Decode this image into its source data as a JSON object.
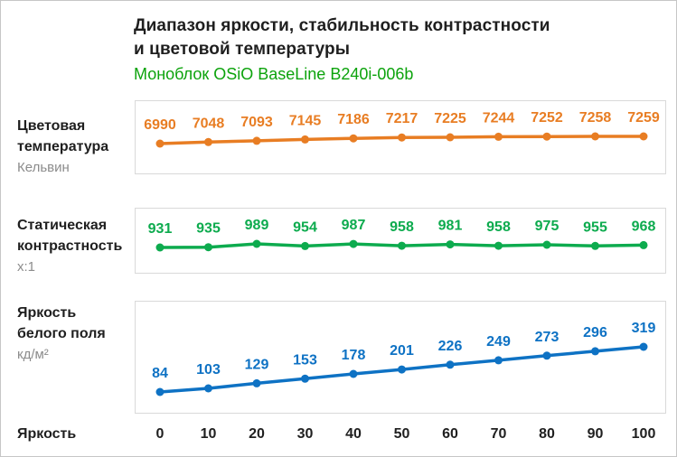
{
  "header": {
    "title_line1": "Диапазон яркости, стабильность контрастности",
    "title_line2": "и цветовой температуры",
    "subtitle": "Моноблок OSiO BaseLine B240i-006b"
  },
  "colors": {
    "subtitle_green": "#0ca30c",
    "orange": "#e87d23",
    "green": "#0dab4e",
    "blue": "#0e72c4",
    "unit_gray": "#8c8c8c",
    "plot_border": "#d9d9d9"
  },
  "x_axis": {
    "label": "Яркость",
    "ticks": [
      "0",
      "10",
      "20",
      "30",
      "40",
      "50",
      "60",
      "70",
      "80",
      "90",
      "100"
    ]
  },
  "chart_data": [
    {
      "type": "line",
      "name": "Цветовая температура",
      "label_lines": [
        "Цветовая",
        "температура"
      ],
      "unit": "Кельвин",
      "color_key": "orange",
      "x": [
        0,
        10,
        20,
        30,
        40,
        50,
        60,
        70,
        80,
        90,
        100
      ],
      "values": [
        6990,
        7048,
        7093,
        7145,
        7186,
        7217,
        7225,
        7244,
        7252,
        7258,
        7259
      ],
      "data_labels": true,
      "grid": false,
      "legend": "none"
    },
    {
      "type": "line",
      "name": "Статическая контрастность",
      "label_lines": [
        "Статическая",
        "контрастность"
      ],
      "unit": "х:1",
      "color_key": "green",
      "x": [
        0,
        10,
        20,
        30,
        40,
        50,
        60,
        70,
        80,
        90,
        100
      ],
      "values": [
        931,
        935,
        989,
        954,
        987,
        958,
        981,
        958,
        975,
        955,
        968
      ],
      "data_labels": true,
      "grid": false,
      "legend": "none"
    },
    {
      "type": "line",
      "name": "Яркость белого поля",
      "label_lines": [
        "Яркость",
        "белого поля"
      ],
      "unit": "кд/м²",
      "color_key": "blue",
      "x": [
        0,
        10,
        20,
        30,
        40,
        50,
        60,
        70,
        80,
        90,
        100
      ],
      "values": [
        84,
        103,
        129,
        153,
        178,
        201,
        226,
        249,
        273,
        296,
        319
      ],
      "data_labels": true,
      "grid": false,
      "legend": "none"
    }
  ]
}
